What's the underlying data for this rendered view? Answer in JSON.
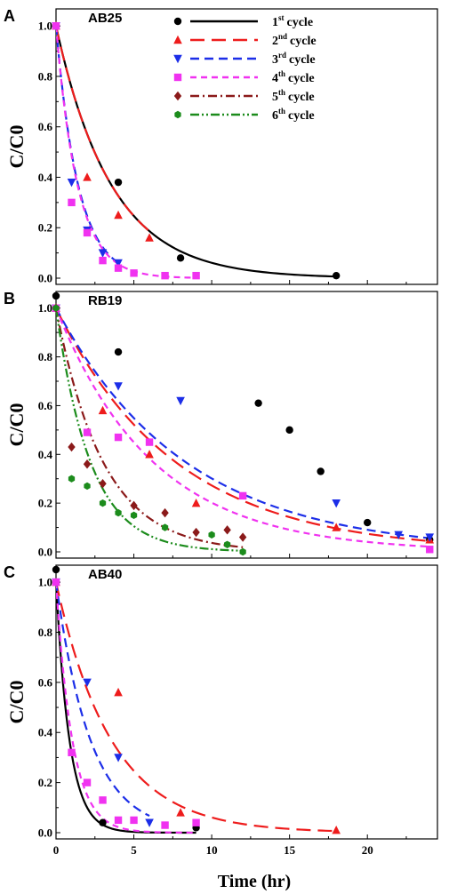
{
  "chart_data": {
    "type": "scatter",
    "xlabel": "Time (hr)",
    "ylabel": "C/C0",
    "xlim": [
      0,
      24.5
    ],
    "x_ticks": [
      0,
      5,
      10,
      15,
      20
    ],
    "legend": {
      "placement": "top-right of panel A",
      "entries": [
        {
          "ordinal": "1",
          "suffix": "st",
          "word": "cycle",
          "color": "#000000",
          "marker": "circle",
          "dash": "solid"
        },
        {
          "ordinal": "2",
          "suffix": "nd",
          "word": "cycle",
          "color": "#ee1c1c",
          "marker": "triangle-up",
          "dash": "long-dash"
        },
        {
          "ordinal": "3",
          "suffix": "rd",
          "word": "cycle",
          "color": "#1c2ee8",
          "marker": "triangle-down",
          "dash": "dash"
        },
        {
          "ordinal": "4",
          "suffix": "th",
          "word": "cycle",
          "color": "#f032f0",
          "marker": "square",
          "dash": "short-dash"
        },
        {
          "ordinal": "5",
          "suffix": "th",
          "word": "cycle",
          "color": "#8b1a1a",
          "marker": "diamond",
          "dash": "dash-dot"
        },
        {
          "ordinal": "6",
          "suffix": "th",
          "word": "cycle",
          "color": "#1c8c1c",
          "marker": "hexagon",
          "dash": "dash-dot-dot"
        }
      ]
    },
    "panels": [
      {
        "label": "A",
        "dye": "AB25",
        "ylim": [
          0,
          1.05
        ],
        "y_ticks": [
          "0.0",
          "0.2",
          "0.4",
          "0.6",
          "0.8",
          "1.0"
        ],
        "series": [
          {
            "cycle": 1,
            "points": [
              [
                0,
                1.0
              ],
              [
                4,
                0.38
              ],
              [
                8,
                0.08
              ],
              [
                18,
                0.01
              ]
            ],
            "fit_k": 0.28,
            "fit_xmax": 18
          },
          {
            "cycle": 2,
            "points": [
              [
                0,
                1.0
              ],
              [
                2,
                0.4
              ],
              [
                4,
                0.25
              ],
              [
                6,
                0.16
              ]
            ],
            "fit_k": 0.28,
            "fit_xmax": 6
          },
          {
            "cycle": 3,
            "points": [
              [
                0,
                1.0
              ],
              [
                1,
                0.38
              ],
              [
                2,
                0.19
              ],
              [
                3,
                0.1
              ],
              [
                4,
                0.06
              ]
            ],
            "fit_k": 0.7,
            "fit_xmax": 4
          },
          {
            "cycle": 4,
            "points": [
              [
                0,
                1.0
              ],
              [
                1,
                0.3
              ],
              [
                2,
                0.18
              ],
              [
                3,
                0.07
              ],
              [
                4,
                0.04
              ],
              [
                5,
                0.02
              ],
              [
                7,
                0.01
              ],
              [
                9,
                0.01
              ]
            ],
            "fit_k": 0.72,
            "fit_xmax": 9
          }
        ]
      },
      {
        "label": "B",
        "dye": "RB19",
        "ylim": [
          0,
          1.05
        ],
        "y_ticks": [
          "0.0",
          "0.2",
          "0.4",
          "0.6",
          "0.8",
          "1.0"
        ],
        "series": [
          {
            "cycle": 1,
            "points": [
              [
                0,
                1.05
              ],
              [
                4,
                0.82
              ],
              [
                13,
                0.61
              ],
              [
                15,
                0.5
              ],
              [
                17,
                0.33
              ],
              [
                20,
                0.12
              ],
              [
                24,
                0.05
              ]
            ],
            "fit_k": null
          },
          {
            "cycle": 2,
            "points": [
              [
                0,
                1.0
              ],
              [
                3,
                0.58
              ],
              [
                6,
                0.4
              ],
              [
                9,
                0.2
              ],
              [
                18,
                0.1
              ],
              [
                24,
                0.05
              ]
            ],
            "fit_k": 0.13,
            "fit_xmax": 24
          },
          {
            "cycle": 3,
            "points": [
              [
                0,
                1.0
              ],
              [
                4,
                0.68
              ],
              [
                8,
                0.62
              ],
              [
                18,
                0.2
              ],
              [
                22,
                0.07
              ],
              [
                24,
                0.06
              ]
            ],
            "fit_k": 0.12,
            "fit_xmax": 24
          },
          {
            "cycle": 4,
            "points": [
              [
                0,
                1.0
              ],
              [
                2,
                0.49
              ],
              [
                4,
                0.47
              ],
              [
                6,
                0.45
              ],
              [
                12,
                0.23
              ],
              [
                24,
                0.01
              ]
            ],
            "fit_k": 0.16,
            "fit_xmax": 24
          },
          {
            "cycle": 5,
            "points": [
              [
                0,
                1.0
              ],
              [
                1,
                0.43
              ],
              [
                2,
                0.36
              ],
              [
                3,
                0.28
              ],
              [
                5,
                0.19
              ],
              [
                7,
                0.16
              ],
              [
                9,
                0.08
              ],
              [
                11,
                0.09
              ],
              [
                12,
                0.06
              ]
            ],
            "fit_k": 0.33,
            "fit_xmax": 12
          },
          {
            "cycle": 6,
            "points": [
              [
                0,
                1.0
              ],
              [
                1,
                0.3
              ],
              [
                2,
                0.27
              ],
              [
                3,
                0.2
              ],
              [
                4,
                0.16
              ],
              [
                5,
                0.15
              ],
              [
                7,
                0.1
              ],
              [
                10,
                0.07
              ],
              [
                11,
                0.03
              ],
              [
                12,
                0.0
              ]
            ],
            "fit_k": 0.45,
            "fit_xmax": 12
          }
        ]
      },
      {
        "label": "C",
        "dye": "AB40",
        "ylim": [
          0,
          1.05
        ],
        "y_ticks": [
          "0.0",
          "0.2",
          "0.4",
          "0.6",
          "0.8",
          "1.0"
        ],
        "series": [
          {
            "cycle": 1,
            "points": [
              [
                0,
                1.05
              ],
              [
                3,
                0.04
              ],
              [
                9,
                0.02
              ]
            ],
            "fit_k": 1.15,
            "fit_xmax": 9
          },
          {
            "cycle": 2,
            "points": [
              [
                0,
                1.0
              ],
              [
                4,
                0.56
              ],
              [
                8,
                0.08
              ],
              [
                18,
                0.01
              ]
            ],
            "fit_k": 0.28,
            "fit_xmax": 18
          },
          {
            "cycle": 3,
            "points": [
              [
                0,
                1.0
              ],
              [
                2,
                0.6
              ],
              [
                4,
                0.3
              ],
              [
                6,
                0.04
              ]
            ],
            "fit_k": 0.45,
            "fit_xmax": 6
          },
          {
            "cycle": 4,
            "points": [
              [
                0,
                1.0
              ],
              [
                1,
                0.32
              ],
              [
                2,
                0.2
              ],
              [
                3,
                0.13
              ],
              [
                4,
                0.05
              ],
              [
                5,
                0.05
              ],
              [
                7,
                0.03
              ],
              [
                9,
                0.04
              ]
            ],
            "fit_k": 0.95,
            "fit_xmax": 9
          }
        ]
      }
    ]
  }
}
